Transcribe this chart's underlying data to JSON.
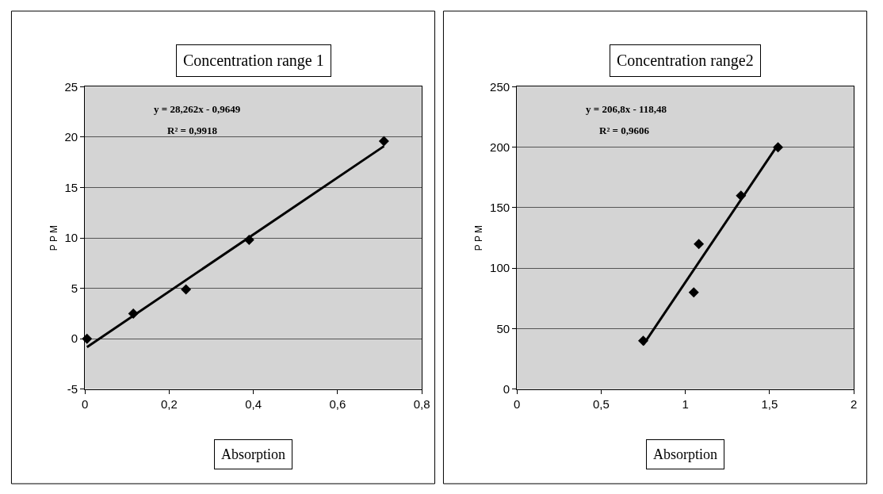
{
  "chart_data": [
    {
      "type": "scatter",
      "title": "Concentration range 1",
      "xlabel": "Absorption",
      "ylabel": "P P M",
      "marker": "diamond",
      "grid": "y",
      "annotations": [
        "y = 28,262x - 0,9649",
        "R² = 0,9918"
      ],
      "xlim": [
        0,
        0.8
      ],
      "xticks": [
        0,
        {
          "value": 0.2,
          "label": "0,2"
        },
        {
          "value": 0.4,
          "label": "0,4"
        },
        {
          "value": 0.6,
          "label": "0,6"
        },
        {
          "value": 0.8,
          "label": "0,8"
        }
      ],
      "ylim": [
        -5,
        25
      ],
      "yticks": [
        -5,
        0,
        5,
        10,
        15,
        20,
        25
      ],
      "series": [
        {
          "color": "#000000",
          "x": [
            0.005,
            0.115,
            0.24,
            0.39,
            0.71
          ],
          "values": [
            0,
            2.5,
            4.9,
            9.8,
            19.6
          ]
        },
        {
          "type": "line",
          "color": "#000000",
          "marker": "none",
          "x": [
            0.005,
            0.71
          ],
          "values": [
            -0.82,
            19.1
          ]
        }
      ]
    },
    {
      "type": "scatter",
      "title": "Concentration range2",
      "xlabel": "Absorption",
      "ylabel": "P P M",
      "marker": "diamond",
      "grid": "y",
      "annotations": [
        "y = 206,8x - 118,48",
        "R² = 0,9606"
      ],
      "xlim": [
        0,
        2
      ],
      "xticks": [
        0,
        {
          "value": 0.5,
          "label": "0,5"
        },
        1,
        {
          "value": 1.5,
          "label": "1,5"
        },
        2
      ],
      "ylim": [
        0,
        250
      ],
      "yticks": [
        0,
        50,
        100,
        150,
        200,
        250
      ],
      "series": [
        {
          "color": "#000000",
          "x": [
            0.75,
            1.05,
            1.08,
            1.33,
            1.55
          ],
          "values": [
            40,
            80,
            120,
            160,
            200
          ]
        },
        {
          "type": "line",
          "color": "#000000",
          "marker": "none",
          "x": [
            0.75,
            1.55
          ],
          "values": [
            36.6,
            202.1
          ]
        }
      ]
    }
  ]
}
